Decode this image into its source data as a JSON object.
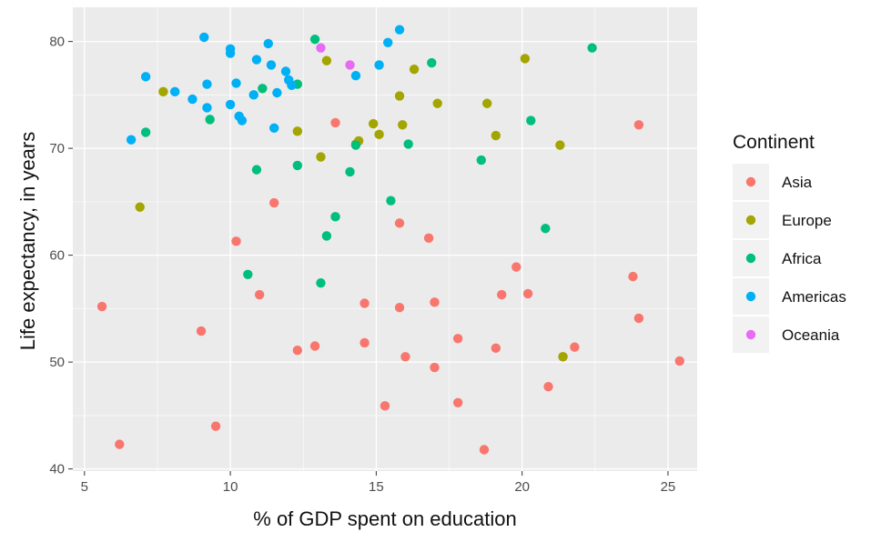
{
  "chart_data": {
    "type": "scatter",
    "title": "",
    "xlabel": "% of GDP spent on education",
    "ylabel": "Life expectancy, in years",
    "xlim": [
      4.6,
      26.0
    ],
    "ylim": [
      39.8,
      83.2
    ],
    "xticks": [
      5,
      10,
      15,
      20,
      25
    ],
    "yticks": [
      40,
      50,
      60,
      70,
      80
    ],
    "grid": true,
    "legend": {
      "title": "Continent",
      "position": "right"
    },
    "colors": {
      "Asia": "#F8766D",
      "Europe": "#A3A500",
      "Africa": "#00BF7D",
      "Americas": "#00B0F6",
      "Oceania": "#E76BF3",
      "panel_background": "#EBEBEB",
      "grid_major": "#FFFFFF"
    },
    "series": [
      {
        "name": "Asia",
        "points": [
          [
            5.6,
            55.2
          ],
          [
            6.2,
            42.3
          ],
          [
            9.0,
            52.9
          ],
          [
            9.5,
            44.0
          ],
          [
            10.2,
            61.3
          ],
          [
            11.0,
            56.3
          ],
          [
            11.5,
            64.9
          ],
          [
            12.3,
            51.1
          ],
          [
            12.9,
            51.5
          ],
          [
            13.6,
            72.4
          ],
          [
            14.6,
            55.5
          ],
          [
            14.6,
            51.8
          ],
          [
            15.3,
            45.9
          ],
          [
            15.8,
            63.0
          ],
          [
            15.8,
            55.1
          ],
          [
            16.0,
            50.5
          ],
          [
            16.8,
            61.6
          ],
          [
            17.0,
            49.5
          ],
          [
            17.0,
            55.6
          ],
          [
            17.8,
            46.2
          ],
          [
            17.8,
            52.2
          ],
          [
            18.7,
            41.8
          ],
          [
            19.1,
            51.3
          ],
          [
            19.3,
            56.3
          ],
          [
            19.8,
            58.9
          ],
          [
            20.2,
            56.4
          ],
          [
            20.9,
            47.7
          ],
          [
            21.4,
            50.5
          ],
          [
            21.8,
            51.4
          ],
          [
            23.8,
            58.0
          ],
          [
            24.0,
            72.2
          ],
          [
            24.0,
            54.1
          ],
          [
            25.4,
            50.1
          ]
        ]
      },
      {
        "name": "Europe",
        "points": [
          [
            6.9,
            64.5
          ],
          [
            7.7,
            75.3
          ],
          [
            12.3,
            71.6
          ],
          [
            13.1,
            69.2
          ],
          [
            13.3,
            78.2
          ],
          [
            14.3,
            70.4
          ],
          [
            14.4,
            70.7
          ],
          [
            14.9,
            72.3
          ],
          [
            15.1,
            71.3
          ],
          [
            15.8,
            74.9
          ],
          [
            15.9,
            72.2
          ],
          [
            16.3,
            77.4
          ],
          [
            17.1,
            74.2
          ],
          [
            18.8,
            74.2
          ],
          [
            19.1,
            71.2
          ],
          [
            20.1,
            78.4
          ],
          [
            21.3,
            70.3
          ],
          [
            21.4,
            50.5
          ]
        ]
      },
      {
        "name": "Africa",
        "points": [
          [
            7.1,
            71.5
          ],
          [
            9.3,
            72.7
          ],
          [
            10.6,
            58.2
          ],
          [
            10.9,
            68.0
          ],
          [
            11.1,
            75.6
          ],
          [
            12.3,
            76.0
          ],
          [
            12.3,
            68.4
          ],
          [
            12.9,
            80.2
          ],
          [
            13.1,
            57.4
          ],
          [
            13.3,
            61.8
          ],
          [
            13.6,
            63.6
          ],
          [
            14.1,
            67.8
          ],
          [
            14.3,
            70.3
          ],
          [
            15.5,
            65.1
          ],
          [
            16.1,
            70.4
          ],
          [
            16.9,
            78.0
          ],
          [
            18.6,
            68.9
          ],
          [
            20.3,
            72.6
          ],
          [
            20.8,
            62.5
          ],
          [
            22.4,
            79.4
          ]
        ]
      },
      {
        "name": "Americas",
        "points": [
          [
            6.6,
            70.8
          ],
          [
            7.1,
            76.7
          ],
          [
            8.1,
            75.3
          ],
          [
            8.7,
            74.6
          ],
          [
            9.1,
            80.4
          ],
          [
            9.2,
            73.8
          ],
          [
            9.2,
            76.0
          ],
          [
            10.0,
            74.1
          ],
          [
            10.0,
            79.3
          ],
          [
            10.0,
            78.9
          ],
          [
            10.2,
            76.1
          ],
          [
            10.3,
            73.0
          ],
          [
            10.4,
            72.6
          ],
          [
            10.8,
            75.0
          ],
          [
            10.9,
            78.3
          ],
          [
            11.3,
            79.8
          ],
          [
            11.4,
            77.8
          ],
          [
            11.5,
            71.9
          ],
          [
            11.6,
            75.2
          ],
          [
            11.9,
            77.2
          ],
          [
            12.0,
            76.4
          ],
          [
            12.1,
            75.9
          ],
          [
            14.3,
            76.8
          ],
          [
            15.1,
            77.8
          ],
          [
            15.4,
            79.9
          ],
          [
            15.8,
            81.1
          ]
        ]
      },
      {
        "name": "Oceania",
        "points": [
          [
            13.1,
            79.4
          ],
          [
            14.1,
            77.8
          ]
        ]
      }
    ]
  }
}
